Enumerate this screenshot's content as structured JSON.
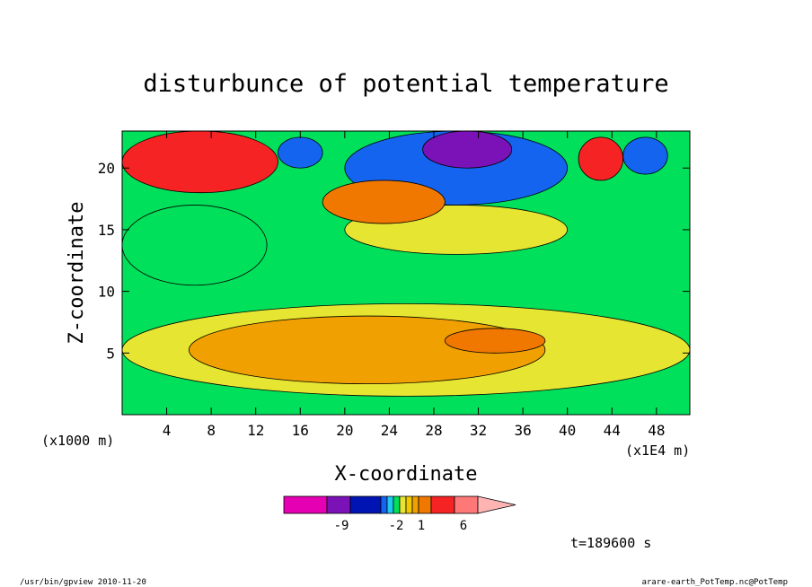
{
  "chart_data": {
    "type": "heatmap",
    "title": "disturbunce of potential temperature",
    "xlabel": "X-coordinate",
    "ylabel": "Z-coordinate",
    "x_unit_left": "(x1000 m)",
    "x_unit_right": "(x1E4 m)",
    "xlim": [
      0,
      51
    ],
    "ylim": [
      0,
      23
    ],
    "xticks": [
      "4",
      "8",
      "12",
      "16",
      "20",
      "24",
      "28",
      "32",
      "36",
      "40",
      "44",
      "48"
    ],
    "yticks": [
      "5",
      "10",
      "15",
      "20"
    ],
    "grid": false,
    "background_level": 0,
    "regions": [
      {
        "x": [
          0,
          51
        ],
        "y": [
          1.5,
          9
        ],
        "level": 0.5
      },
      {
        "x": [
          6,
          38
        ],
        "y": [
          2.5,
          8
        ],
        "level": 1.5
      },
      {
        "x": [
          29,
          38
        ],
        "y": [
          5,
          7
        ],
        "level": 3
      },
      {
        "x": [
          0,
          13
        ],
        "y": [
          10.5,
          17
        ],
        "level": -0.5
      },
      {
        "x": [
          20,
          40
        ],
        "y": [
          13,
          17
        ],
        "level": 0.5
      },
      {
        "x": [
          20,
          40
        ],
        "y": [
          17,
          23
        ],
        "level": -3
      },
      {
        "x": [
          27,
          35
        ],
        "y": [
          20,
          23
        ],
        "level": -9
      },
      {
        "x": [
          0,
          14
        ],
        "y": [
          18,
          23
        ],
        "level": 6
      },
      {
        "x": [
          18,
          29
        ],
        "y": [
          15.5,
          19
        ],
        "level": 3
      },
      {
        "x": [
          41,
          45
        ],
        "y": [
          19,
          22.5
        ],
        "level": 6
      },
      {
        "x": [
          45,
          49
        ],
        "y": [
          19.5,
          22.5
        ],
        "level": -3
      },
      {
        "x": [
          14,
          18
        ],
        "y": [
          20,
          22.5
        ],
        "level": -2
      }
    ],
    "colorbar": {
      "colors": [
        "#e600b4",
        "#7b12b8",
        "#0014b4",
        "#1464f0",
        "#1ec8f0",
        "#00e05a",
        "#e6e632",
        "#f0c800",
        "#f0a000",
        "#f07800",
        "#f52323",
        "#ff7878",
        "#ffb4b4"
      ],
      "tick_labels": [
        "-9",
        "-2",
        "1",
        "6"
      ]
    },
    "time_label": "t=189600 s"
  },
  "footer": {
    "left": "/usr/bin/gpview  2010-11-20",
    "right": "arare-earth_PotTemp.nc@PotTemp"
  }
}
